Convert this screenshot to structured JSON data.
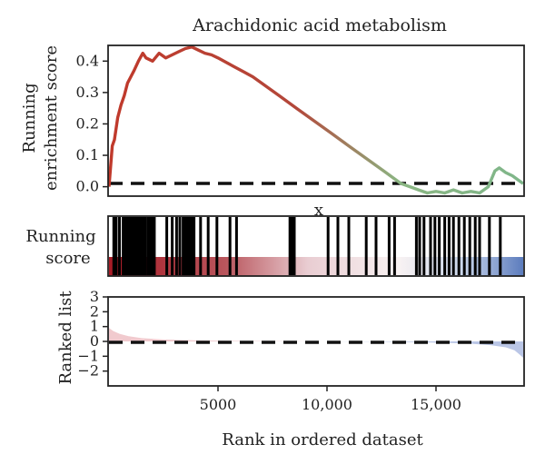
{
  "chart_data": {
    "type": "line",
    "title": "Arachidonic acid metabolism",
    "xlabel": "Rank in ordered dataset",
    "xlim": [
      0,
      19000
    ],
    "x_ticks": [
      5000,
      10000,
      15000
    ],
    "x_tick_labels": [
      "5000",
      "10,000",
      "15,000"
    ],
    "grid": false,
    "panels": [
      {
        "name": "enrichment",
        "ylabel": [
          "Running",
          "enrichment score"
        ],
        "ylim": [
          -0.03,
          0.45
        ],
        "y_ticks": [
          0.0,
          0.1,
          0.2,
          0.3,
          0.4
        ],
        "y_tick_labels": [
          "0.0",
          "0.1",
          "0.2",
          "0.3",
          "0.4"
        ],
        "reference_line": 0,
        "series": [
          {
            "x": [
              0,
              150,
              250,
              400,
              550,
              700,
              850,
              1000,
              1150,
              1350,
              1550,
              1700,
              2000,
              2300,
              2600,
              2900,
              3200,
              3500,
              3800,
              4100,
              4400,
              4700,
              5000,
              5400,
              5800,
              6200,
              6600,
              7000,
              7400,
              7800,
              8200,
              8600,
              9000,
              9400,
              9800,
              10200,
              10600,
              11000,
              11400,
              11800,
              12200,
              12600,
              13000,
              13400,
              13800,
              14200,
              14600,
              15000,
              15400,
              15800,
              16200,
              16600,
              17000,
              17400,
              17700,
              17900,
              18200,
              18500,
              18800,
              19000
            ],
            "y": [
              0.0,
              0.13,
              0.15,
              0.22,
              0.26,
              0.29,
              0.33,
              0.35,
              0.37,
              0.4,
              0.425,
              0.41,
              0.4,
              0.425,
              0.41,
              0.42,
              0.43,
              0.44,
              0.445,
              0.435,
              0.425,
              0.42,
              0.41,
              0.395,
              0.38,
              0.365,
              0.35,
              0.33,
              0.31,
              0.29,
              0.27,
              0.25,
              0.23,
              0.21,
              0.19,
              0.17,
              0.15,
              0.13,
              0.11,
              0.09,
              0.07,
              0.05,
              0.03,
              0.01,
              0.0,
              -0.01,
              -0.02,
              -0.015,
              -0.02,
              -0.01,
              -0.02,
              -0.015,
              -0.02,
              0.0,
              0.05,
              0.06,
              0.045,
              0.035,
              0.02,
              0.01
            ]
          }
        ]
      },
      {
        "name": "hits",
        "ylabel": [
          "Running",
          "score"
        ],
        "marker_label": "x",
        "hit_positions": [
          220,
          330,
          480,
          650,
          760,
          870,
          950,
          1050,
          1120,
          1220,
          1320,
          1400,
          1480,
          1580,
          1680,
          1800,
          1900,
          2000,
          2080,
          2650,
          2900,
          3100,
          3250,
          3400,
          3500,
          3550,
          3650,
          3750,
          3800,
          3900,
          4200,
          4550,
          4950,
          5550,
          5850,
          8300,
          8400,
          8450,
          8500,
          10050,
          10500,
          11000,
          11800,
          12250,
          12850,
          13100,
          14100,
          14250,
          14450,
          14750,
          14950,
          15150,
          15400,
          15600,
          15800,
          16050,
          16300,
          16550,
          16800,
          17000,
          17450,
          17950
        ],
        "gradient_colors": [
          "#a91b26",
          "#b9555c",
          "#e9cdd2",
          "#f8f2f2",
          "#ccd8ec",
          "#5c7cbd"
        ]
      },
      {
        "name": "ranked",
        "ylabel": "Ranked list",
        "ylim": [
          -3,
          3
        ],
        "y_ticks": [
          -2,
          -1,
          0,
          1,
          2,
          3
        ],
        "y_tick_labels": [
          "−2",
          "−1",
          "0",
          "1",
          "2",
          "3"
        ],
        "reference_line": 0,
        "series": [
          {
            "x": [
              0,
              200,
              500,
              900,
              1500,
              2500,
              4000,
              6000,
              8000,
              10000,
              12000,
              14000,
              15500,
              16500,
              17500,
              18200,
              18600,
              18850,
              19000
            ],
            "y": [
              0.9,
              0.7,
              0.5,
              0.35,
              0.22,
              0.13,
              0.07,
              0.03,
              0.01,
              0.0,
              -0.02,
              -0.05,
              -0.1,
              -0.15,
              -0.25,
              -0.4,
              -0.6,
              -0.9,
              -1.1
            ]
          }
        ]
      }
    ],
    "colors": {
      "curve_start": "#c0392b",
      "curve_end": "#7fb68a",
      "ranked_pos": "#e7a6ad",
      "ranked_neg": "#a9b8e0"
    }
  }
}
